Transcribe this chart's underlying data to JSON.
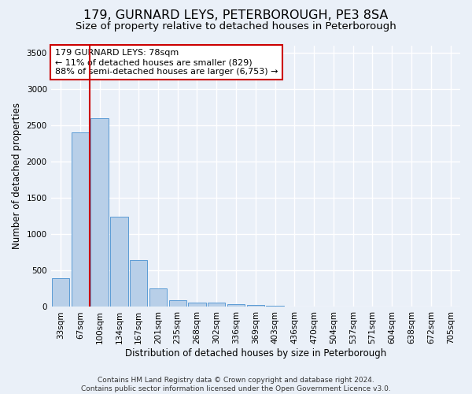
{
  "title": "179, GURNARD LEYS, PETERBOROUGH, PE3 8SA",
  "subtitle": "Size of property relative to detached houses in Peterborough",
  "xlabel": "Distribution of detached houses by size in Peterborough",
  "ylabel": "Number of detached properties",
  "categories": [
    "33sqm",
    "67sqm",
    "100sqm",
    "134sqm",
    "167sqm",
    "201sqm",
    "235sqm",
    "268sqm",
    "302sqm",
    "336sqm",
    "369sqm",
    "403sqm",
    "436sqm",
    "470sqm",
    "504sqm",
    "537sqm",
    "571sqm",
    "604sqm",
    "638sqm",
    "672sqm",
    "705sqm"
  ],
  "values": [
    390,
    2400,
    2600,
    1240,
    640,
    255,
    95,
    60,
    55,
    40,
    30,
    20,
    10,
    5,
    5,
    3,
    2,
    2,
    1,
    1,
    1
  ],
  "bar_color": "#b8cfe8",
  "bar_edge_color": "#5b9bd5",
  "ylim": [
    0,
    3600
  ],
  "yticks": [
    0,
    500,
    1000,
    1500,
    2000,
    2500,
    3000,
    3500
  ],
  "vline_x": 1.5,
  "vline_color": "#cc0000",
  "annotation_text": "179 GURNARD LEYS: 78sqm\n← 11% of detached houses are smaller (829)\n88% of semi-detached houses are larger (6,753) →",
  "annotation_box_color": "#cc0000",
  "footnote": "Contains HM Land Registry data © Crown copyright and database right 2024.\nContains public sector information licensed under the Open Government Licence v3.0.",
  "bg_color": "#eaf0f8",
  "grid_color": "#ffffff",
  "title_fontsize": 11.5,
  "subtitle_fontsize": 9.5,
  "label_fontsize": 8.5,
  "tick_fontsize": 7.5,
  "footnote_fontsize": 6.5
}
